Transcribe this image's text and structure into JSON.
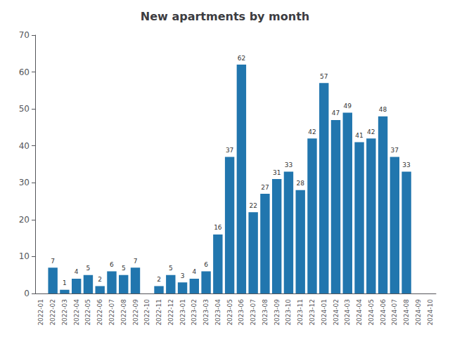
{
  "chart_data": {
    "type": "bar",
    "title": "New apartments by month",
    "categories": [
      "2022-01",
      "2022-02",
      "2022-03",
      "2022-04",
      "2022-05",
      "2022-06",
      "2022-07",
      "2022-08",
      "2022-09",
      "2022-10",
      "2022-11",
      "2022-12",
      "2023-01",
      "2023-02",
      "2023-03",
      "2023-04",
      "2023-05",
      "2023-06",
      "2023-07",
      "2023-08",
      "2023-09",
      "2023-10",
      "2023-11",
      "2023-12",
      "2024-01",
      "2024-02",
      "2024-03",
      "2024-04",
      "2024-05",
      "2024-06",
      "2024-07",
      "2024-08",
      "2024-09",
      "2024-10"
    ],
    "values": [
      0,
      7,
      1,
      4,
      5,
      2,
      6,
      5,
      7,
      0,
      2,
      5,
      3,
      4,
      6,
      16,
      37,
      62,
      22,
      27,
      31,
      33,
      28,
      42,
      57,
      47,
      49,
      41,
      42,
      48,
      37,
      33,
      0,
      0
    ],
    "value_labels": [
      null,
      "7",
      "1",
      "4",
      "5",
      "2",
      "6",
      "5",
      "7",
      null,
      "2",
      "5",
      "3",
      "4",
      "6",
      "16",
      "37",
      "62",
      "22",
      "27",
      "31",
      "33",
      "28",
      "42",
      "57",
      "47",
      "49",
      "41",
      "42",
      "48",
      "37",
      "33",
      null,
      null
    ],
    "data_labels": true,
    "color": "#2176ae",
    "ylim": [
      0,
      70
    ],
    "yticks": [
      0,
      10,
      20,
      30,
      40,
      50,
      60,
      70
    ],
    "grid": false
  }
}
